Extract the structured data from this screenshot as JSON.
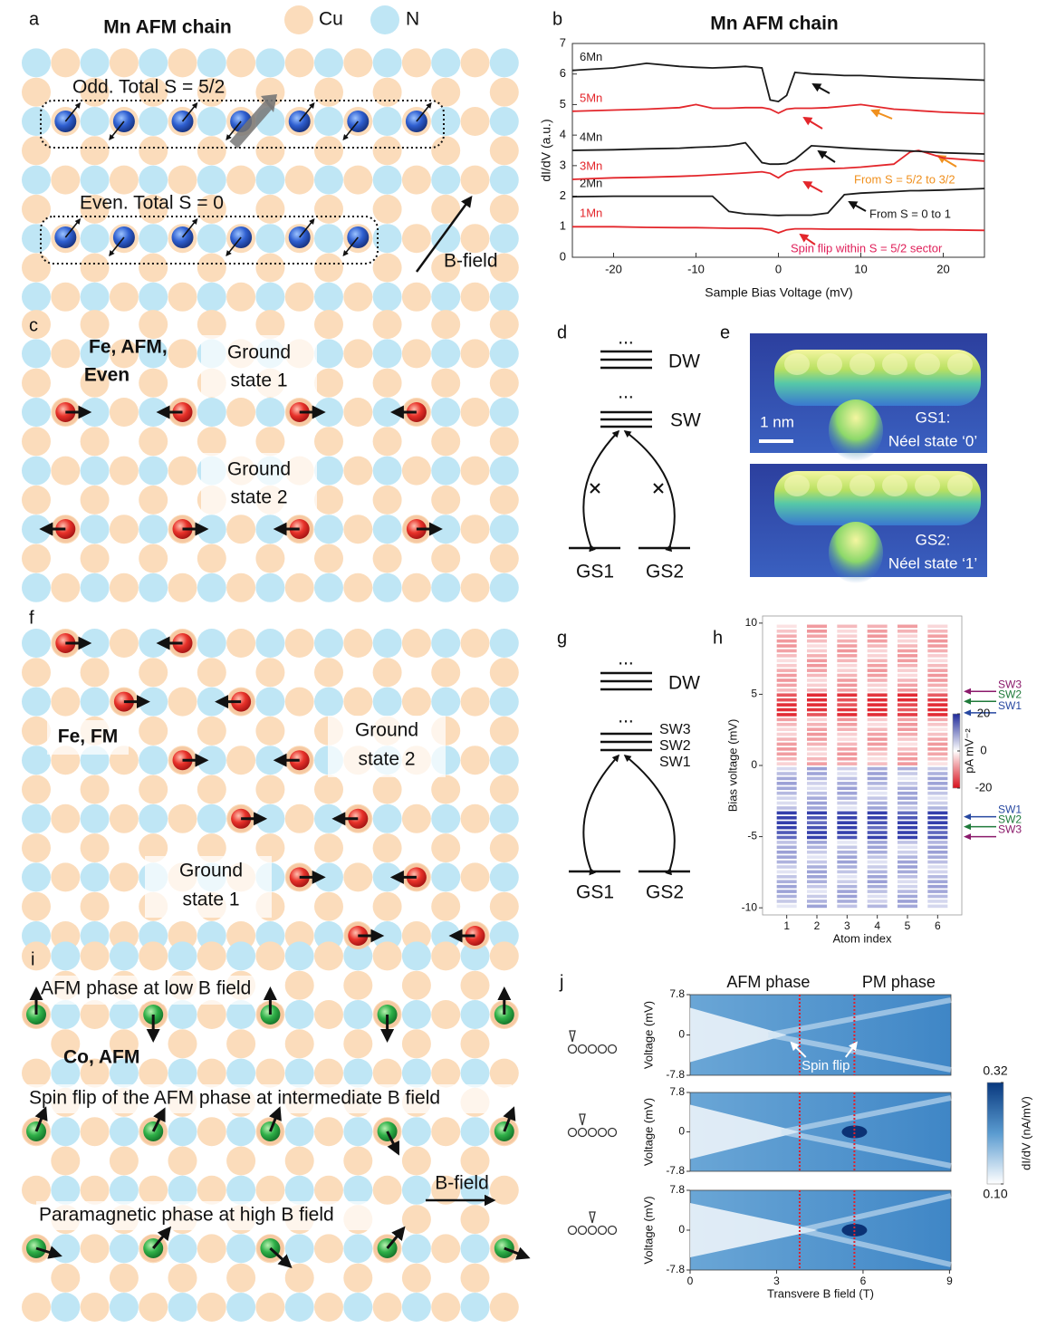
{
  "panel_labels": [
    "a",
    "b",
    "c",
    "d",
    "e",
    "f",
    "g",
    "h",
    "i",
    "j"
  ],
  "panel_a": {
    "title": "Mn AFM chain",
    "legend": [
      "Cu",
      "N"
    ],
    "odd_label": "Odd. Total S = 5/2",
    "even_label": "Even. Total S = 0",
    "field_label": "B-field"
  },
  "panel_c": {
    "label": [
      "Fe, AFM,",
      "Even"
    ],
    "ground_state_1": [
      "Ground",
      "state 1"
    ],
    "ground_state_2": [
      "Ground",
      "state 2"
    ]
  },
  "panel_d": {
    "dots": [
      "...",
      "..."
    ],
    "levels": [
      "DW",
      "SW"
    ],
    "ground_states": [
      "GS1",
      "GS2"
    ]
  },
  "panel_e": {
    "scale": "1 nm",
    "gs1": [
      "GS1:",
      "Néel state ‘0’"
    ],
    "gs2": [
      "GS2:",
      "Néel state ‘1’"
    ]
  },
  "panel_f": {
    "label": "Fe, FM",
    "ground_state_2": [
      "Ground",
      "state 2"
    ],
    "ground_state_1": [
      "Ground",
      "state 1"
    ]
  },
  "panel_g": {
    "dots": [
      "...",
      "..."
    ],
    "dw": "DW",
    "sw": [
      "SW3",
      "SW2",
      "SW1"
    ],
    "ground_states": [
      "GS1",
      "GS2"
    ]
  },
  "panel_i": {
    "low": "AFM phase at low B field",
    "label": "Co, AFM",
    "mid": "Spin flip of the AFM phase at intermediate B field",
    "high": "Paramagnetic phase at high B field",
    "field_label": "B-field"
  },
  "chart_data": [
    {
      "type": "line",
      "title": "Mn AFM chain",
      "xlabel": "Sample Bias Voltage (mV)",
      "ylabel": "dI/dV (a.u.)",
      "x": [
        -25,
        -20,
        -16,
        -12,
        -10,
        -8,
        -6,
        -4,
        -2,
        -1,
        0,
        1,
        2,
        4,
        6,
        8,
        10,
        14,
        16,
        17,
        20,
        25
      ],
      "series": [
        {
          "name": "1Mn",
          "color": "#e3262b",
          "values": [
            1.0,
            1.0,
            0.98,
            0.97,
            0.97,
            0.96,
            0.95,
            0.95,
            0.94,
            0.9,
            0.8,
            0.9,
            0.93,
            0.93,
            0.92,
            0.92,
            0.92,
            0.91,
            0.91,
            0.9,
            0.9,
            0.88
          ]
        },
        {
          "name": "2Mn",
          "color": "#1a1a1a",
          "values": [
            1.98,
            2.0,
            2.0,
            2.0,
            2.0,
            2.0,
            1.5,
            1.42,
            1.4,
            1.38,
            1.37,
            1.38,
            1.38,
            1.38,
            1.45,
            2.05,
            2.1,
            2.15,
            2.18,
            2.18,
            2.2,
            2.25
          ]
        },
        {
          "name": "3Mn",
          "color": "#e3262b",
          "values": [
            2.55,
            2.6,
            2.62,
            2.65,
            2.67,
            2.7,
            2.73,
            2.76,
            2.8,
            2.75,
            2.6,
            2.78,
            2.85,
            2.88,
            2.9,
            2.92,
            2.95,
            3.05,
            3.45,
            3.5,
            3.25,
            3.15
          ]
        },
        {
          "name": "4Mn",
          "color": "#1a1a1a",
          "values": [
            3.5,
            3.52,
            3.55,
            3.57,
            3.6,
            3.62,
            3.65,
            3.75,
            3.1,
            3.05,
            3.05,
            3.07,
            3.2,
            3.65,
            3.62,
            3.58,
            3.55,
            3.5,
            3.48,
            3.47,
            3.42,
            3.38
          ]
        },
        {
          "name": "5Mn",
          "color": "#e3262b",
          "values": [
            4.78,
            4.82,
            4.85,
            4.9,
            5.0,
            4.88,
            4.88,
            4.9,
            4.9,
            4.85,
            4.72,
            4.85,
            4.88,
            4.88,
            4.9,
            4.95,
            5.0,
            4.85,
            4.82,
            4.8,
            4.75,
            4.7
          ]
        },
        {
          "name": "6Mn",
          "color": "#1a1a1a",
          "values": [
            6.12,
            6.2,
            6.35,
            6.25,
            6.22,
            6.2,
            6.22,
            6.25,
            6.2,
            5.15,
            5.1,
            5.3,
            6.05,
            6.0,
            5.98,
            5.95,
            5.95,
            5.9,
            5.88,
            5.87,
            5.85,
            5.8
          ]
        }
      ],
      "xlim": [
        -25,
        25
      ],
      "ylim": [
        0,
        7
      ],
      "xticks": [
        -20,
        -10,
        0,
        10,
        20
      ],
      "yticks": [
        0,
        1,
        2,
        3,
        4,
        5,
        6,
        7
      ],
      "annotations": [
        {
          "text": "From S = 5/2 to 3/2",
          "color": "#f0901e"
        },
        {
          "text": "From S = 0 to 1",
          "color": "#1a1a1a"
        },
        {
          "text": "Spin flip within S = 5/2 sector",
          "color": "#e0205a"
        }
      ]
    },
    {
      "type": "heatmap",
      "xlabel": "Atom index",
      "ylabel": "Bias voltage (mV)",
      "xlim": [
        0.2,
        6.8
      ],
      "ylim": [
        -10.5,
        10.5
      ],
      "xticks": [
        1,
        2,
        3,
        4,
        5,
        6
      ],
      "yticks": [
        -10,
        -5,
        0,
        5,
        10
      ],
      "colorbar": {
        "label": "pA mV⁻²",
        "lim": [
          -20,
          20
        ],
        "ticks": [
          20,
          0,
          -20
        ]
      },
      "levels": [
        {
          "name": "SW3",
          "color": "#8b1a6b",
          "values": [
            5.2,
            -5.0
          ]
        },
        {
          "name": "SW2",
          "color": "#1f7a3a",
          "values": [
            4.5,
            -4.3
          ]
        },
        {
          "name": "SW1",
          "color": "#2647a0",
          "values": [
            3.7,
            -3.6
          ]
        }
      ]
    },
    {
      "type": "heatmap",
      "xlabel": "Transvere B field (T)",
      "ylabel": "Voltage (mV)",
      "phases": [
        "AFM phase",
        "PM phase"
      ],
      "annotation": "Spin flip",
      "xlim": [
        0,
        9.05
      ],
      "ylim": [
        -7.8,
        7.8
      ],
      "xticks": [
        0,
        3,
        6,
        9
      ],
      "yticks": [
        7.8,
        0,
        -7.8
      ],
      "transitions": [
        3.8,
        5.7
      ],
      "colorbar": {
        "label": "dI/dV (nA/mV)",
        "lim": [
          0.1,
          0.32
        ],
        "ticks": [
          0.32,
          {
            "value": 0.1,
            "label": "0.10"
          }
        ]
      }
    }
  ]
}
